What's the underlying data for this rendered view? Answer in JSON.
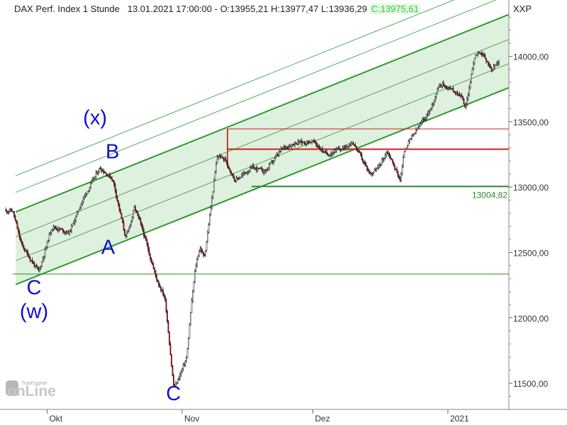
{
  "header": {
    "title": "DAX Perf. Index 1 Stunde",
    "datetime": "13.01.2021 17:00:00",
    "ohl": "O:13955,21 H:13977,47 L:13936,29",
    "close": "C:13975,61",
    "scale": "XXP"
  },
  "logo": {
    "brand": "Tradesignal",
    "product": "onLine"
  },
  "colors": {
    "candle_up": "#ffffff",
    "candle_down": "#cc0000",
    "candle_outline": "#000000",
    "channel_fill": "#d8edd8",
    "channel_line": "#2d9a2d",
    "support_line": "#2d8a2d",
    "resistance_line": "#cc2222",
    "wave_label": "#1111cc",
    "level_label": "#2d8a2d"
  },
  "chart_data": {
    "type": "candlestick",
    "xaxis": {
      "labels": [
        "Okt",
        "Nov",
        "Dez",
        "2021"
      ]
    },
    "yaxis": {
      "ticks": [
        11500,
        12000,
        12500,
        13000,
        13500,
        14000
      ],
      "tick_labels": [
        "11500,00",
        "12000,00",
        "12500,00",
        "13000,00",
        "13500,00",
        "14000,00"
      ],
      "range": [
        11300,
        14420
      ],
      "position": "right"
    },
    "price_anchors": [
      [
        "2020-09-23",
        12820
      ],
      [
        "2020-09-25",
        12560
      ],
      [
        "2020-09-29",
        12350
      ],
      [
        "2020-10-02",
        12700
      ],
      [
        "2020-10-06",
        12650
      ],
      [
        "2020-10-09",
        12900
      ],
      [
        "2020-10-13",
        13150
      ],
      [
        "2020-10-16",
        13060
      ],
      [
        "2020-10-19",
        12600
      ],
      [
        "2020-10-21",
        12850
      ],
      [
        "2020-10-23",
        12650
      ],
      [
        "2020-10-26",
        12300
      ],
      [
        "2020-10-28",
        12150
      ],
      [
        "2020-10-29",
        11800
      ],
      [
        "2020-10-30",
        11450
      ],
      [
        "2020-11-02",
        11700
      ],
      [
        "2020-11-03",
        12100
      ],
      [
        "2020-11-04",
        12400
      ],
      [
        "2020-11-05",
        12550
      ],
      [
        "2020-11-06",
        12450
      ],
      [
        "2020-11-09",
        13250
      ],
      [
        "2020-11-11",
        13200
      ],
      [
        "2020-11-13",
        13050
      ],
      [
        "2020-11-17",
        13150
      ],
      [
        "2020-11-20",
        13120
      ],
      [
        "2020-11-24",
        13300
      ],
      [
        "2020-11-27",
        13340
      ],
      [
        "2020-12-01",
        13350
      ],
      [
        "2020-12-04",
        13250
      ],
      [
        "2020-12-08",
        13300
      ],
      [
        "2020-12-10",
        13350
      ],
      [
        "2020-12-14",
        13100
      ],
      [
        "2020-12-16",
        13150
      ],
      [
        "2020-12-18",
        13280
      ],
      [
        "2020-12-21",
        13050
      ],
      [
        "2020-12-22",
        13300
      ],
      [
        "2020-12-28",
        13600
      ],
      [
        "2020-12-30",
        13800
      ],
      [
        "2021-01-04",
        13700
      ],
      [
        "2021-01-05",
        13600
      ],
      [
        "2021-01-07",
        14000
      ],
      [
        "2021-01-08",
        14050
      ],
      [
        "2021-01-11",
        13900
      ],
      [
        "2021-01-13",
        13975
      ]
    ],
    "horizontal_levels": [
      {
        "name": "support",
        "value": 13004.82,
        "label": "13004,82"
      },
      {
        "name": "resistance",
        "value": 13290
      },
      {
        "name": "upper-reference",
        "value": 13445
      },
      {
        "name": "lower-reference",
        "value": 12335
      }
    ],
    "channel": {
      "lower_line": [
        [
          "2020-09-22",
          12255
        ],
        [
          "2021-01-15",
          13760
        ]
      ],
      "upper_line": [
        [
          "2020-09-22",
          12810
        ],
        [
          "2021-01-15",
          14320
        ]
      ]
    },
    "wave_labels": [
      {
        "text": "(x)",
        "date": "2020-10-12",
        "price": 13480
      },
      {
        "text": "B",
        "date": "2020-10-16",
        "price": 13220
      },
      {
        "text": "A",
        "date": "2020-10-15",
        "price": 12490
      },
      {
        "text": "C",
        "date": "2020-09-28",
        "price": 12180
      },
      {
        "text": "(w)",
        "date": "2020-09-28",
        "price": 12000
      },
      {
        "text": "C",
        "date": "2020-10-30",
        "price": 11370
      }
    ]
  }
}
